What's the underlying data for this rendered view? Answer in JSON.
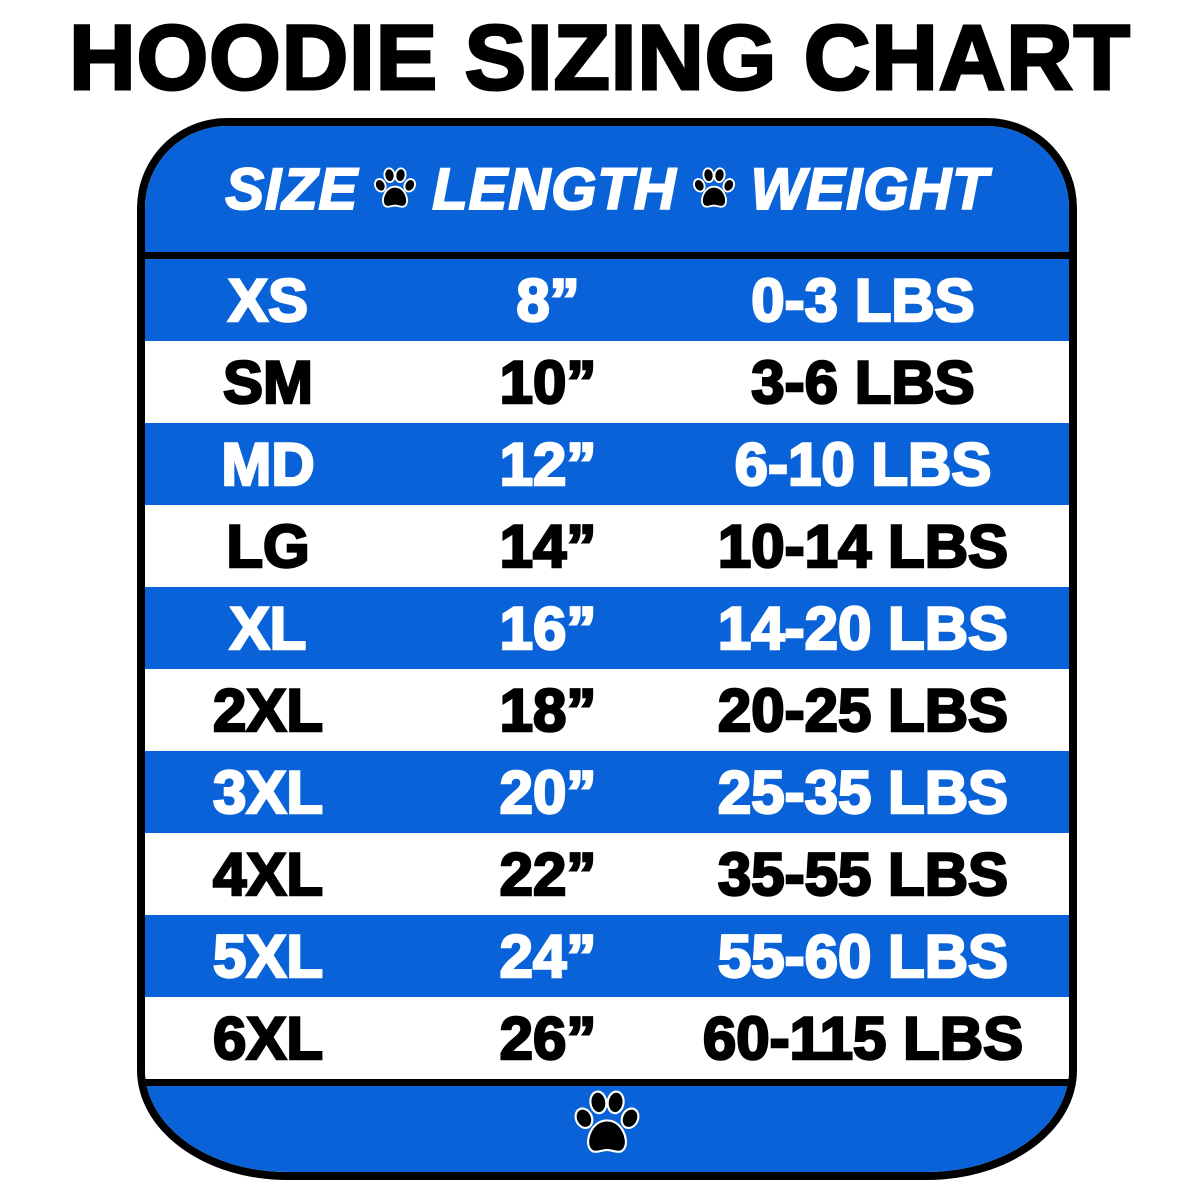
{
  "title": "HOODIE SIZING CHART",
  "colors": {
    "accent_blue": "#0a62d8",
    "border": "#000000"
  },
  "header": {
    "size": "SIZE",
    "length": "LENGTH",
    "weight": "WEIGHT",
    "separator_icon": "paw-print-icon"
  },
  "rows": [
    {
      "size": "XS",
      "length": "8”",
      "weight": "0-3 LBS",
      "band": "blue"
    },
    {
      "size": "SM",
      "length": "10”",
      "weight": "3-6 LBS",
      "band": "white"
    },
    {
      "size": "MD",
      "length": "12”",
      "weight": "6-10 LBS",
      "band": "blue"
    },
    {
      "size": "LG",
      "length": "14”",
      "weight": "10-14 LBS",
      "band": "white"
    },
    {
      "size": "XL",
      "length": "16”",
      "weight": "14-20 LBS",
      "band": "blue"
    },
    {
      "size": "2XL",
      "length": "18”",
      "weight": "20-25 LBS",
      "band": "white"
    },
    {
      "size": "3XL",
      "length": "20”",
      "weight": "25-35 LBS",
      "band": "blue"
    },
    {
      "size": "4XL",
      "length": "22”",
      "weight": "35-55 LBS",
      "band": "white"
    },
    {
      "size": "5XL",
      "length": "24”",
      "weight": "55-60 LBS",
      "band": "blue"
    },
    {
      "size": "6XL",
      "length": "26”",
      "weight": "60-115 LBS",
      "band": "white"
    }
  ],
  "footer": {
    "icon": "paw-print-icon"
  }
}
